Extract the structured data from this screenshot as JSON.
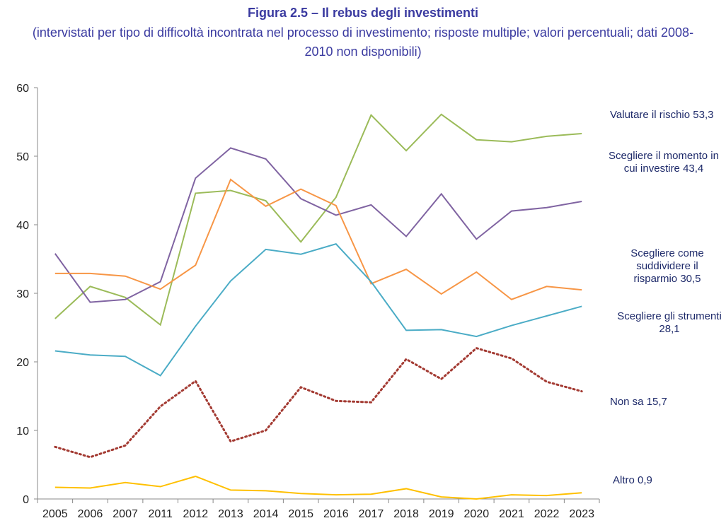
{
  "chart_data": {
    "type": "line",
    "title": "Figura 2.5 – Il rebus degli investimenti",
    "subtitle": "(intervistati per tipo di difficoltà incontrata nel processo di investimento; risposte multiple; valori percentuali; dati 2008-2010 non disponibili)",
    "categories": [
      "2005",
      "2006",
      "2007",
      "2011",
      "2012",
      "2013",
      "2014",
      "2015",
      "2016",
      "2017",
      "2018",
      "2019",
      "2020",
      "2021",
      "2022",
      "2023"
    ],
    "ylim": [
      0,
      60
    ],
    "yticks": [
      0,
      10,
      20,
      30,
      40,
      50,
      60
    ],
    "series": [
      {
        "name": "Valutare il rischio",
        "color": "#9bbb59",
        "end_label": "53,3",
        "values": [
          26.3,
          31,
          29.4,
          25.4,
          44.6,
          45,
          43.5,
          37.5,
          44,
          56,
          50.8,
          56.1,
          52.4,
          52.1,
          52.9,
          53.3
        ]
      },
      {
        "name": "Scegliere il momento in cui investire",
        "color": "#8064a2",
        "end_label": "43,4",
        "values": [
          35.8,
          28.7,
          29.1,
          31.7,
          46.8,
          51.2,
          49.6,
          43.8,
          41.4,
          42.9,
          38.3,
          44.5,
          37.9,
          42,
          42.5,
          43.4
        ]
      },
      {
        "name": "Scegliere come suddividere il risparmio",
        "color": "#f79646",
        "end_label": "30,5",
        "values": [
          32.9,
          32.9,
          32.5,
          30.6,
          34.1,
          46.6,
          42.7,
          45.2,
          42.8,
          31.4,
          33.5,
          29.9,
          33.1,
          29.1,
          31,
          30.5
        ]
      },
      {
        "name": "Scegliere gli strumenti",
        "color": "#4bacc6",
        "end_label": "28,1",
        "values": [
          21.6,
          21,
          20.8,
          18,
          25.2,
          31.8,
          36.4,
          35.7,
          37.2,
          31.7,
          24.6,
          24.7,
          23.7,
          25.3,
          26.7,
          28.1
        ]
      },
      {
        "name": "Non sa",
        "color": "#a33a32",
        "dashed": true,
        "end_label": "15,7",
        "values": [
          7.6,
          6.1,
          7.8,
          13.5,
          17.2,
          8.4,
          10,
          16.3,
          14.3,
          14.1,
          20.4,
          17.5,
          22,
          20.5,
          17.1,
          15.7
        ]
      },
      {
        "name": "Altro",
        "color": "#ffc000",
        "end_label": "0,9",
        "values": [
          1.7,
          1.6,
          2.4,
          1.8,
          3.3,
          1.3,
          1.2,
          0.8,
          0.6,
          0.7,
          1.5,
          0.3,
          0,
          0.6,
          0.5,
          0.9
        ]
      }
    ]
  }
}
